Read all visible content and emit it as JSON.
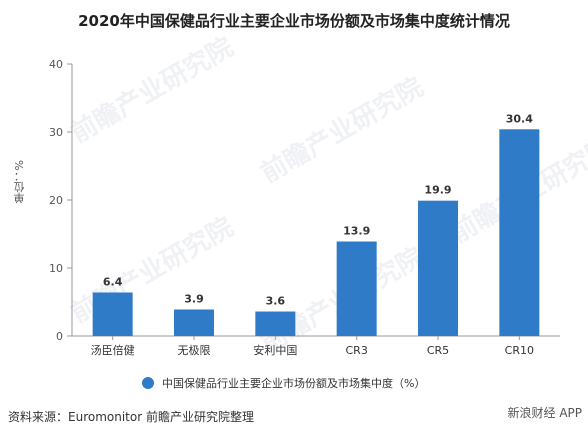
{
  "title": "2020年中国保健品行业主要企业市场份额及市场集中度统计情况",
  "source": "资料来源：Euromonitor 前瞻产业研究院整理",
  "brand": "新浪财经 APP",
  "watermark": "前瞻产业研究院",
  "colors": {
    "bar": "#2f7bc8",
    "axis": "#999999",
    "grid": "#e6e6e6"
  },
  "chart_data": {
    "type": "bar",
    "categories": [
      "汤臣倍健",
      "无极限",
      "安利中国",
      "CR3",
      "CR5",
      "CR10"
    ],
    "series": [
      {
        "name": "中国保健品行业主要企业市场份额及市场集中度（%）",
        "values": [
          6.4,
          3.9,
          3.6,
          13.9,
          19.9,
          30.4
        ]
      }
    ],
    "ylabel": "单位：%",
    "ylim": [
      0,
      40
    ],
    "yticks": [
      0,
      10,
      20,
      30,
      40
    ],
    "grid": false,
    "legend": "bottom"
  }
}
